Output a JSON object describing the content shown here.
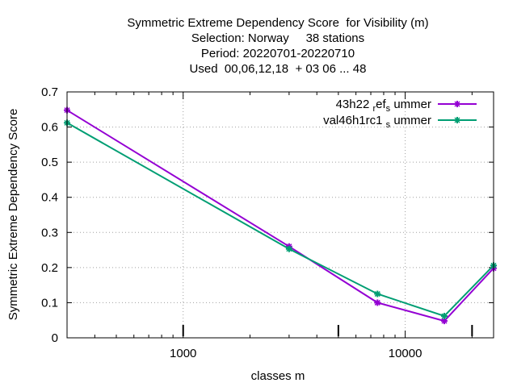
{
  "chart_data": {
    "type": "line",
    "title_lines": [
      "Symmetric Extreme Dependency Score  for Visibility (m)",
      "Selection: Norway     38 stations",
      "Period: 20220701-20220710",
      "Used  00,06,12,18  + 03 06 ... 48"
    ],
    "xlabel": "classes m",
    "ylabel": "Symmetric Extreme Dependency Score",
    "x_scale": "log",
    "xlim": [
      300,
      25000
    ],
    "ylim": [
      0,
      0.7
    ],
    "x_ticks": [
      1000,
      10000
    ],
    "x_tick_labels": [
      "1000",
      "10000"
    ],
    "y_ticks": [
      0,
      0.1,
      0.2,
      0.3,
      0.4,
      0.5,
      0.6,
      0.7
    ],
    "y_tick_labels": [
      "0",
      "0.1",
      "0.2",
      "0.3",
      "0.4",
      "0.5",
      "0.6",
      "0.7"
    ],
    "grid": true,
    "legend_position": "top-right",
    "extra_marks_x": [
      1000,
      5000,
      20000
    ],
    "series": [
      {
        "name": "43h22_ref_summer",
        "legend_parts": [
          "43h22 ",
          "r",
          "ef",
          "s",
          " ummer"
        ],
        "color": "#9400d3",
        "x": [
          300,
          3000,
          7500,
          15000,
          25000
        ],
        "y": [
          0.648,
          0.26,
          0.1,
          0.048,
          0.198
        ]
      },
      {
        "name": "val46h1rc1_summer",
        "legend_parts": [
          "val46h1rc1 ",
          "",
          "",
          "s",
          " ummer"
        ],
        "color": "#009e73",
        "x": [
          300,
          3000,
          7500,
          15000,
          25000
        ],
        "y": [
          0.612,
          0.253,
          0.125,
          0.062,
          0.206
        ]
      }
    ]
  }
}
